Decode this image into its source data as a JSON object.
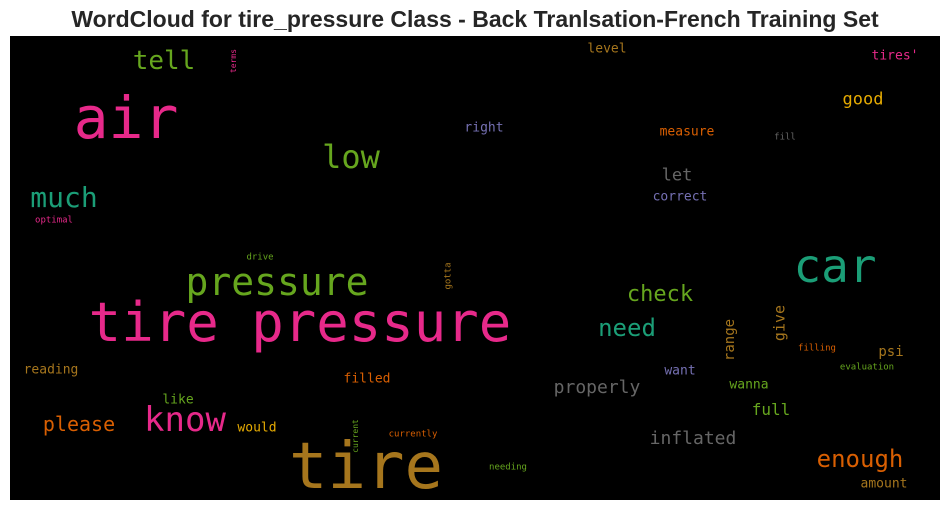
{
  "chart_data": {
    "type": "wordcloud",
    "title": "WordCloud for tire_pressure Class - Back Tranlsation-French Training Set",
    "background": "#000000",
    "words": [
      {
        "text": "tire pressure",
        "color": "#e7298a"
      },
      {
        "text": "tire",
        "color": "#a6761d"
      },
      {
        "text": "air",
        "color": "#e7298a"
      },
      {
        "text": "car",
        "color": "#1b9e77"
      },
      {
        "text": "pressure",
        "color": "#66a61e"
      },
      {
        "text": "know",
        "color": "#e7298a"
      },
      {
        "text": "low",
        "color": "#66a61e"
      },
      {
        "text": "much",
        "color": "#1b9e77"
      },
      {
        "text": "enough",
        "color": "#d95f02"
      },
      {
        "text": "tell",
        "color": "#66a61e"
      },
      {
        "text": "need",
        "color": "#1b9e77"
      },
      {
        "text": "check",
        "color": "#66a61e"
      },
      {
        "text": "please",
        "color": "#d95f02"
      },
      {
        "text": "inflated",
        "color": "#666666"
      },
      {
        "text": "properly",
        "color": "#666666"
      },
      {
        "text": "good",
        "color": "#e6ab02"
      },
      {
        "text": "let",
        "color": "#666666"
      },
      {
        "text": "give",
        "color": "#a6761d"
      },
      {
        "text": "range",
        "color": "#a6761d"
      },
      {
        "text": "full",
        "color": "#66a61e"
      },
      {
        "text": "psi",
        "color": "#a6761d"
      },
      {
        "text": "right",
        "color": "#7570b3"
      },
      {
        "text": "correct",
        "color": "#7570b3"
      },
      {
        "text": "measure",
        "color": "#d95f02"
      },
      {
        "text": "tires'",
        "color": "#e7298a"
      },
      {
        "text": "level",
        "color": "#a6761d"
      },
      {
        "text": "filled",
        "color": "#d95f02"
      },
      {
        "text": "reading",
        "color": "#a6761d"
      },
      {
        "text": "would",
        "color": "#e6ab02"
      },
      {
        "text": "like",
        "color": "#66a61e"
      },
      {
        "text": "want",
        "color": "#7570b3"
      },
      {
        "text": "wanna",
        "color": "#66a61e"
      },
      {
        "text": "amount",
        "color": "#a6761d"
      },
      {
        "text": "fill",
        "color": "#666666"
      },
      {
        "text": "optimal",
        "color": "#e7298a"
      },
      {
        "text": "drive",
        "color": "#66a61e"
      },
      {
        "text": "gotta",
        "color": "#a6761d"
      },
      {
        "text": "terms",
        "color": "#e7298a"
      },
      {
        "text": "filling",
        "color": "#d95f02"
      },
      {
        "text": "evaluation",
        "color": "#66a61e"
      },
      {
        "text": "current",
        "color": "#66a61e"
      },
      {
        "text": "currently",
        "color": "#d95f02"
      },
      {
        "text": "needing",
        "color": "#66a61e"
      }
    ]
  }
}
